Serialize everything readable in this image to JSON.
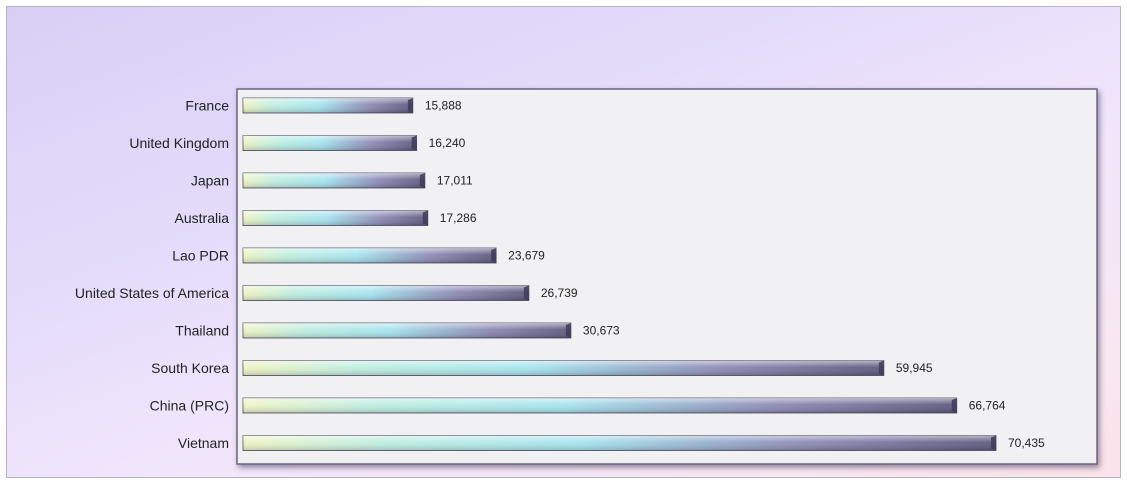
{
  "chart_data": {
    "type": "bar",
    "orientation": "horizontal",
    "title": "",
    "xlabel": "",
    "ylabel": "",
    "categories": [
      "France",
      "United Kingdom",
      "Japan",
      "Australia",
      "Lao PDR",
      "United States of America",
      "Thailand",
      "South Korea",
      "China (PRC)",
      "Vietnam"
    ],
    "values": [
      15888,
      16240,
      17011,
      17286,
      23679,
      26739,
      30673,
      59945,
      66764,
      70435
    ],
    "value_labels": [
      "15,888",
      "16,240",
      "17,011",
      "17,286",
      "23,679",
      "26,739",
      "30,673",
      "59,945",
      "66,764",
      "70,435"
    ],
    "xlim": [
      0,
      80000
    ],
    "grid": false,
    "legend": "none",
    "colors": {
      "bar_start": "#eef3c4",
      "bar_mid": "#a6e4ee",
      "bar_end": "#5e5a7e",
      "plot_background": "#f1f1f3",
      "page_background_top": "#d9cff5",
      "page_background_bottom": "#fbe3ea"
    }
  }
}
